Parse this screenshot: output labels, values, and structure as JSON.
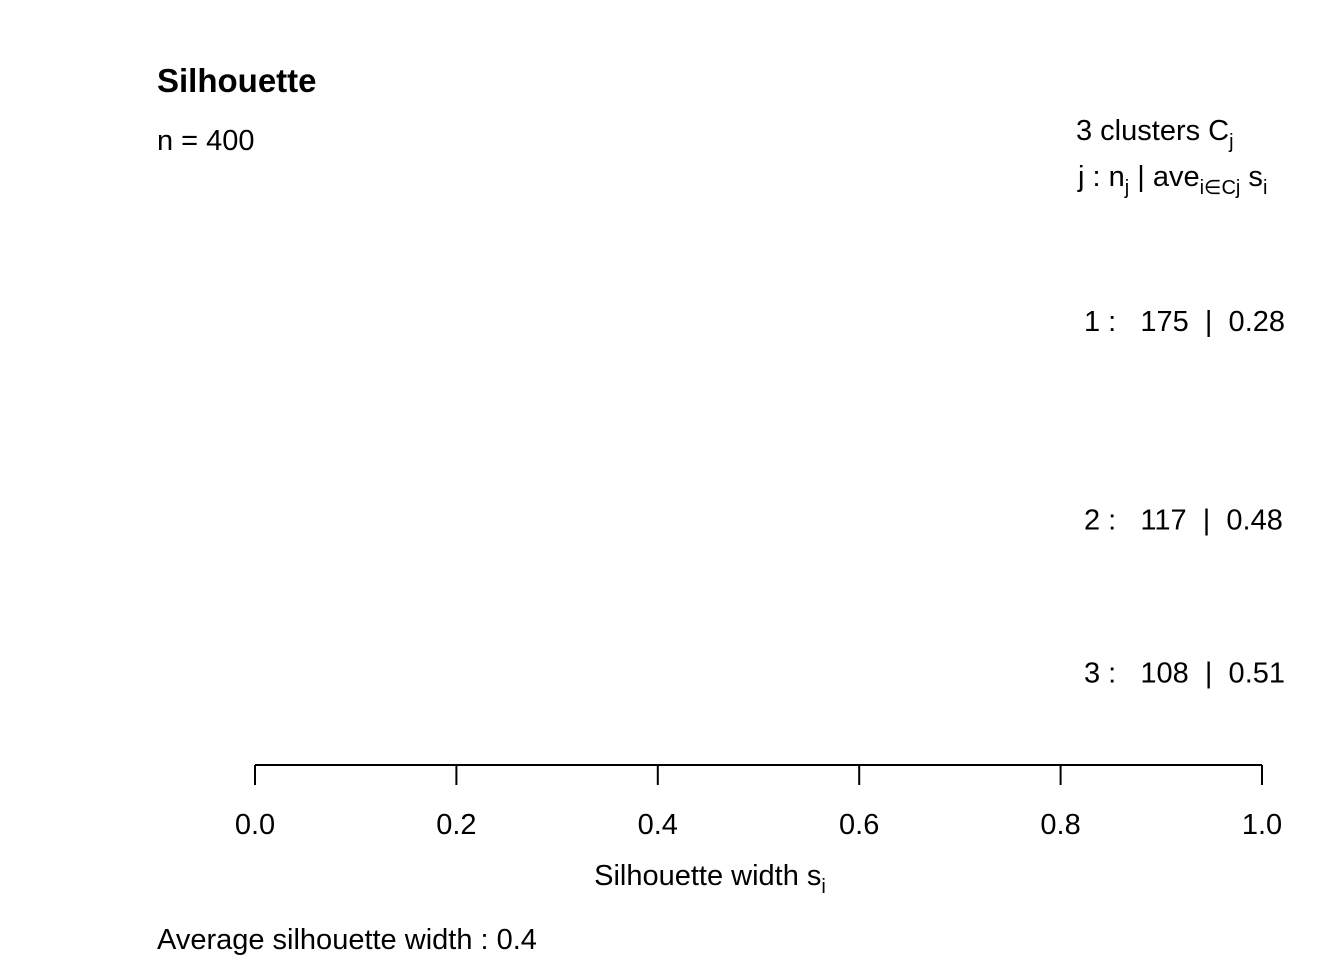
{
  "chart_data": {
    "type": "bar",
    "title": "Silhouette",
    "subtitle": "n = 400",
    "legend_header": {
      "line1_prefix": "3  clusters  C",
      "line1_sub": "j",
      "line2_a": "j :  n",
      "line2_a_sub": "j",
      "line2_b": " | ave",
      "line2_b_sub": "i∈Cj",
      "line2_c": "  s",
      "line2_c_sub": "i"
    },
    "clusters": [
      {
        "id": "1",
        "n": 175,
        "avg": 0.28,
        "label": "1 :   175  |  0.28"
      },
      {
        "id": "2",
        "n": 117,
        "avg": 0.48,
        "label": "2 :   117  |  0.48"
      },
      {
        "id": "3",
        "n": 108,
        "avg": 0.51,
        "label": "3 :   108  |  0.51"
      }
    ],
    "xlim": [
      0,
      1
    ],
    "xticks": [
      0.0,
      0.2,
      0.4,
      0.6,
      0.8,
      1.0
    ],
    "xtick_labels": [
      "0.0",
      "0.2",
      "0.4",
      "0.6",
      "0.8",
      "1.0"
    ],
    "xlabel": "Silhouette width s",
    "xlabel_sub": "i",
    "footer": "Average silhouette width :  0.4",
    "avg_width": 0.4
  }
}
